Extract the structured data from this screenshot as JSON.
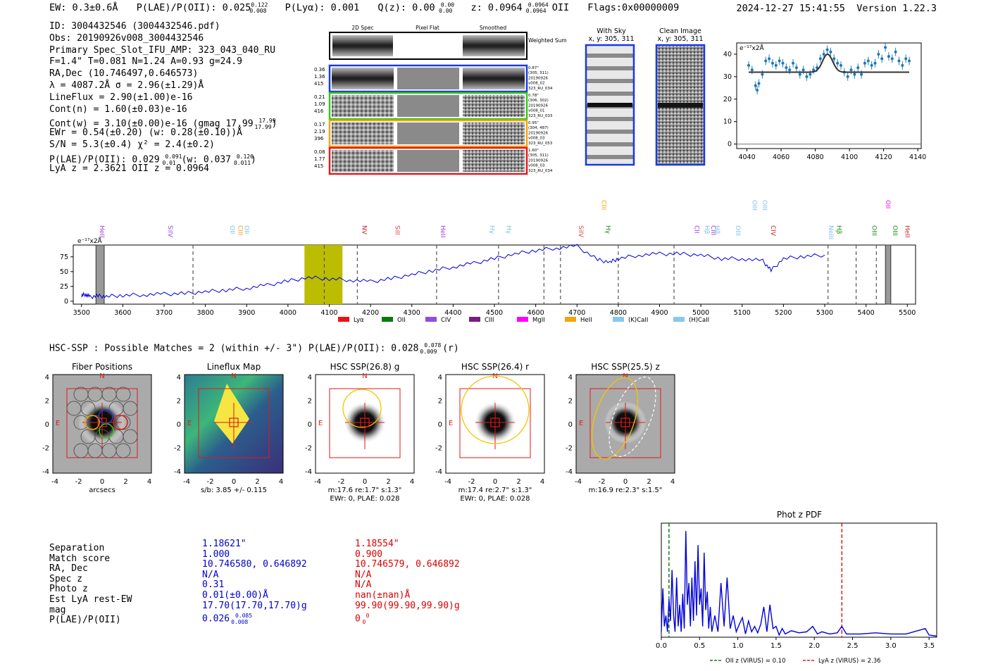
{
  "header": {
    "ew": "EW: 0.3±0.6Å",
    "plae": "P(LAE)/P(OII): 0.025",
    "plae_sup": "0.122",
    "plae_sub": "0.008",
    "plya": "P(Lyα): 0.001",
    "qz": "Q(z): 0.00",
    "qz_sup": "0.00",
    "qz_sub": "0.00",
    "z": "z: 0.0964",
    "z_sup": "0.0964",
    "z_sub": "0.0964",
    "z_line": "OII",
    "flags": "Flags:0x00000009",
    "timestamp": "2024-12-27 15:41:55",
    "version": "Version 1.22.3"
  },
  "info": {
    "id": "ID: 3004432546 (3004432546.pdf)",
    "obs": "Obs: 20190926v008_3004432546",
    "primary": "Primary Spec_Slot_IFU_AMP: 323_043_040_RU",
    "fwhm": "F=1.4\"  T=0.081  N=1.24  A=0.93  g=24.9",
    "radec": "RA,Dec (10.746497,0.646573)",
    "lambda": "λ = 4087.2Å  σ = 2.96(±1.29)Å",
    "lineflux": "LineFlux = 2.90(±1.00)e-16",
    "contn": "Cont(n) = 1.60(±0.03)e-16",
    "contw": "Cont(w) = 3.10(±0.00)e-16 (gmag 17.99",
    "contw_sup": "17.99",
    "contw_sub": "17.99",
    "ewr": "EWr = 0.54(±0.20) (w: 0.28(±0.10))Å",
    "sn": "S/N = 5.3(±0.4)  χ² = 2.4(±0.2)",
    "plae": "P(LAE)/P(OII): 0.029",
    "plae_sup": "0.091",
    "plae_sub": "0.01",
    "plae_w": "(w: 0.037",
    "plae_w_sup": "0.126",
    "plae_w_sub": "0.011",
    "lyaz": "LyA z = 2.3621  OII z = 0.0964"
  },
  "cutouts": {
    "col_labels": [
      "2D Spec",
      "Pixel Flat",
      "Smoothed"
    ],
    "weighted": "Weighted Sum",
    "rows": [
      {
        "left": [
          "0.36",
          "1.36",
          "415"
        ],
        "right": [
          "0.87\"",
          "(305, 311)",
          "20190926",
          "v008_02",
          "323_RU_034"
        ],
        "color": "#1a3adf"
      },
      {
        "left": [
          "0.21",
          "1.09",
          "416"
        ],
        "right": [
          "0.78\"",
          "(306, 302)",
          "20190926",
          "v008_01",
          "323_RU_033"
        ],
        "color": "#35c51b"
      },
      {
        "left": [
          "0.17",
          "2.19",
          "396"
        ],
        "right": [
          "0.95\"",
          "(304, 487)",
          "20190926",
          "v008_03",
          "323_RU_053"
        ],
        "color": "#f5a40a"
      },
      {
        "left": [
          "0.08",
          "1.77",
          "415"
        ],
        "right": [
          "1.60\"",
          "(305, 311)",
          "20190926",
          "v008_03",
          "323_RU_034"
        ],
        "color": "#e21a1a"
      }
    ],
    "with_sky": "With Sky",
    "with_sky_xy": "x, y: 305, 311",
    "clean": "Clean Image",
    "clean_xy": "x, y: 305, 311"
  },
  "line_fit": {
    "units": "e⁻¹⁷x2Å",
    "x_ticks": [
      "4040",
      "4060",
      "4080",
      "4100",
      "4120",
      "4140"
    ],
    "y_ticks": [
      "0",
      "10",
      "20",
      "30",
      "40"
    ],
    "xlim": [
      4034,
      4142
    ],
    "ylim": [
      -2,
      45
    ],
    "continuum": 32,
    "peak": 40,
    "center": 4087.2,
    "sigma": 2.96,
    "fit_x": [
      4041,
      4135
    ],
    "data_points": [
      [
        4041,
        35
      ],
      [
        4043,
        33
      ],
      [
        4045,
        26
      ],
      [
        4046,
        24
      ],
      [
        4047,
        27
      ],
      [
        4049,
        31
      ],
      [
        4051,
        37
      ],
      [
        4053,
        38
      ],
      [
        4055,
        36
      ],
      [
        4057,
        35
      ],
      [
        4059,
        37
      ],
      [
        4061,
        36
      ],
      [
        4063,
        34
      ],
      [
        4065,
        33
      ],
      [
        4067,
        36
      ],
      [
        4069,
        34
      ],
      [
        4071,
        31
      ],
      [
        4073,
        33
      ],
      [
        4075,
        30
      ],
      [
        4077,
        31
      ],
      [
        4079,
        33
      ],
      [
        4081,
        34
      ],
      [
        4083,
        38
      ],
      [
        4085,
        40
      ],
      [
        4087,
        42
      ],
      [
        4089,
        41
      ],
      [
        4091,
        38
      ],
      [
        4093,
        36
      ],
      [
        4095,
        35
      ],
      [
        4097,
        32
      ],
      [
        4099,
        30
      ],
      [
        4101,
        33
      ],
      [
        4103,
        31
      ],
      [
        4105,
        34
      ],
      [
        4107,
        31
      ],
      [
        4109,
        36
      ],
      [
        4111,
        37
      ],
      [
        4113,
        35
      ],
      [
        4115,
        36
      ],
      [
        4117,
        40
      ],
      [
        4119,
        38
      ],
      [
        4121,
        43
      ],
      [
        4123,
        39
      ],
      [
        4125,
        38
      ],
      [
        4127,
        41
      ],
      [
        4129,
        37
      ],
      [
        4131,
        35
      ],
      [
        4133,
        38
      ],
      [
        4135,
        37
      ]
    ]
  },
  "full_spectrum": {
    "units": "e⁻¹⁷x2Å",
    "x_ticks": [
      "3500",
      "3600",
      "3700",
      "3800",
      "3900",
      "4000",
      "4100",
      "4200",
      "4300",
      "4400",
      "4500",
      "4600",
      "4700",
      "4800",
      "4900",
      "5000",
      "5100",
      "5200",
      "5300",
      "5400",
      "5500"
    ],
    "y_ticks": [
      "0",
      "25",
      "50",
      "75"
    ],
    "xlim": [
      3480,
      5520
    ],
    "ylim": [
      -5,
      95
    ],
    "highlight": [
      4040,
      4132
    ],
    "dashed": [
      3770,
      4088,
      4168,
      4360,
      4510,
      4620,
      4660,
      4800,
      4935,
      5308,
      5376,
      5425
    ],
    "masks": [
      3535,
      3555,
      5447,
      5460
    ],
    "lines": [
      {
        "name": "HeII",
        "w": 3545,
        "color": "#a43ad6"
      },
      {
        "name": "SiIV",
        "w": 3710,
        "color": "#8f4ce6"
      },
      {
        "name": "OII",
        "w": 3860,
        "color": "#7cc0ea"
      },
      {
        "name": "CIII",
        "w": 3880,
        "color": "#f5a40a"
      },
      {
        "name": "OII",
        "w": 3895,
        "color": "#7cc0ea"
      },
      {
        "name": "NV",
        "w": 4180,
        "color": "#d02020"
      },
      {
        "name": "SiII",
        "w": 4260,
        "color": "#e04040"
      },
      {
        "name": "HeII",
        "w": 4370,
        "color": "#a43ad6"
      },
      {
        "name": "Hγ",
        "w": 4490,
        "color": "#7cc0ea"
      },
      {
        "name": "Hγ",
        "w": 4530,
        "color": "#7cc0ea"
      },
      {
        "name": "SiIV",
        "w": 4705,
        "color": "#e04040"
      },
      {
        "name": "CIII",
        "w": 4760,
        "color": "#f5a40a"
      },
      {
        "name": "Hγ",
        "w": 4770,
        "color": "#1a8a1a"
      },
      {
        "name": "CII",
        "w": 4985,
        "color": "#a43ad6"
      },
      {
        "name": "Hβ",
        "w": 5010,
        "color": "#7cc0ea"
      },
      {
        "name": "CIII",
        "w": 5025,
        "color": "#a43ad6"
      },
      {
        "name": "Hβ",
        "w": 5035,
        "color": "#7cc0ea"
      },
      {
        "name": "OIII",
        "w": 5085,
        "color": "#7cc0ea"
      },
      {
        "name": "OIII",
        "w": 5125,
        "color": "#7cc0ea"
      },
      {
        "name": "OIII",
        "w": 5150,
        "color": "#7cc0ea"
      },
      {
        "name": "CIV",
        "w": 5170,
        "color": "#d02020"
      },
      {
        "name": "NeIII",
        "w": 5310,
        "color": "#7cc0ea"
      },
      {
        "name": "Hβ",
        "w": 5330,
        "color": "#1a8a1a"
      },
      {
        "name": "OIII",
        "w": 5415,
        "color": "#1a8a1a"
      },
      {
        "name": "OII",
        "w": 5448,
        "color": "#ff00ff"
      },
      {
        "name": "OIII",
        "w": 5465,
        "color": "#1a8a1a"
      },
      {
        "name": "HeII",
        "w": 5495,
        "color": "#d02020"
      }
    ],
    "legend": [
      {
        "label": "Lyα",
        "color": "#e11"
      },
      {
        "label": "OII",
        "color": "#0a7a0a"
      },
      {
        "label": "CIV",
        "color": "#8f4ce6"
      },
      {
        "label": "CIII",
        "color": "#7a1b86"
      },
      {
        "label": "MgII",
        "color": "#ff00ff"
      },
      {
        "label": "HeII",
        "color": "#f5a40a"
      },
      {
        "label": "(K)CaII",
        "color": "#87c8f0"
      },
      {
        "label": "(H)CaII",
        "color": "#87c8f0"
      }
    ],
    "spectrum": [
      [
        3500,
        10
      ],
      [
        3510,
        12
      ],
      [
        3520,
        7
      ],
      [
        3540,
        9
      ],
      [
        3560,
        8
      ],
      [
        3600,
        10
      ],
      [
        3650,
        11
      ],
      [
        3700,
        12
      ],
      [
        3750,
        13
      ],
      [
        3800,
        16
      ],
      [
        3850,
        19
      ],
      [
        3900,
        22
      ],
      [
        3950,
        27
      ],
      [
        4000,
        34
      ],
      [
        4050,
        40
      ],
      [
        4100,
        38
      ],
      [
        4150,
        36
      ],
      [
        4200,
        33
      ],
      [
        4250,
        38
      ],
      [
        4300,
        45
      ],
      [
        4350,
        52
      ],
      [
        4400,
        58
      ],
      [
        4450,
        64
      ],
      [
        4500,
        72
      ],
      [
        4550,
        80
      ],
      [
        4600,
        86
      ],
      [
        4650,
        90
      ],
      [
        4700,
        93
      ],
      [
        4750,
        70
      ],
      [
        4780,
        66
      ],
      [
        4800,
        72
      ],
      [
        4850,
        78
      ],
      [
        4900,
        80
      ],
      [
        4950,
        80
      ],
      [
        5000,
        78
      ],
      [
        5050,
        72
      ],
      [
        5100,
        72
      ],
      [
        5150,
        68
      ],
      [
        5170,
        52
      ],
      [
        5200,
        72
      ],
      [
        5250,
        76
      ],
      [
        5300,
        78
      ]
    ]
  },
  "hsc_header": "HSC-SSP : Possible Matches = 2 (within +/- 3\")  P(LAE)/P(OII): 0.028",
  "hsc_sup": "0.078",
  "hsc_sub": "0.009",
  "hsc_tail": "(r)",
  "cutout_panels": [
    {
      "title": "Fiber Positions",
      "cap1": "arcsecs",
      "cap2": ""
    },
    {
      "title": "Lineflux Map",
      "cap1": "s/b: 3.85 +/- 0.115",
      "cap2": ""
    },
    {
      "title": "HSC SSP(26.8) g",
      "cap1": "m:17.6  re:1.7\"  s:1.3\"",
      "cap2": "EWr: 0, PLAE: 0.028"
    },
    {
      "title": "HSC SSP(26.4) r",
      "cap1": "m:17.4  re:2.7\"  s:1.3\"",
      "cap2": "EWr: 0, PLAE: 0.028"
    },
    {
      "title": "HSC SSP(25.5) z",
      "cap1": "m:16.9  re:2.3\"  s:1.5\"",
      "cap2": ""
    }
  ],
  "cutout_ticks": [
    "-4",
    "-2",
    "0",
    "2",
    "4"
  ],
  "compass": {
    "n": "N",
    "e": "E"
  },
  "match_table": {
    "labels": [
      "Separation",
      "Match score",
      "RA, Dec",
      "Spec z",
      "Photo z",
      "Est LyA rest-EW",
      "mag",
      "P(LAE)/P(OII)"
    ],
    "match1": [
      "1.18621\"",
      "1.000",
      "10.746580, 0.646892",
      "N/A",
      "0.31",
      "0.01(±0.00)Å",
      "17.70(17.70,17.70)g",
      "0.026"
    ],
    "match1_sup": "0.085",
    "match1_sub": "0.008",
    "match2": [
      "1.18554\"",
      "0.900",
      "10.746579, 0.646892",
      "N/A",
      "N/A",
      "nan(±nan)Å",
      "99.90(99.90,99.90)g",
      "0"
    ],
    "match2_sup": "0",
    "match2_sub": "0"
  },
  "photz": {
    "title": "Phot z PDF",
    "x_ticks": [
      "0.0",
      "0.5",
      "1.0",
      "1.5",
      "2.0",
      "2.5",
      "3.0",
      "3.5"
    ],
    "xlim": [
      0,
      3.6
    ],
    "oii_z": 0.1,
    "lya_z": 2.36,
    "legend_oii": "OII z (VIRUS) = 0.10",
    "legend_lya": "LyA z (VIRUS) = 2.36",
    "pdf": [
      [
        0.0,
        0.05
      ],
      [
        0.02,
        0.45
      ],
      [
        0.04,
        0.1
      ],
      [
        0.06,
        0.2
      ],
      [
        0.08,
        0.05
      ],
      [
        0.1,
        0.35
      ],
      [
        0.12,
        0.15
      ],
      [
        0.14,
        0.62
      ],
      [
        0.16,
        0.2
      ],
      [
        0.18,
        0.05
      ],
      [
        0.2,
        0.55
      ],
      [
        0.22,
        0.1
      ],
      [
        0.24,
        0.3
      ],
      [
        0.26,
        0.05
      ],
      [
        0.28,
        0.4
      ],
      [
        0.3,
        0.08
      ],
      [
        0.32,
        0.98
      ],
      [
        0.34,
        0.3
      ],
      [
        0.36,
        0.5
      ],
      [
        0.38,
        0.1
      ],
      [
        0.4,
        0.55
      ],
      [
        0.42,
        0.15
      ],
      [
        0.44,
        0.7
      ],
      [
        0.46,
        0.2
      ],
      [
        0.48,
        0.85
      ],
      [
        0.5,
        0.3
      ],
      [
        0.52,
        0.45
      ],
      [
        0.54,
        0.1
      ],
      [
        0.56,
        0.78
      ],
      [
        0.58,
        0.25
      ],
      [
        0.6,
        0.42
      ],
      [
        0.62,
        0.08
      ],
      [
        0.64,
        0.28
      ],
      [
        0.66,
        0.05
      ],
      [
        0.7,
        0.2
      ],
      [
        0.74,
        0.05
      ],
      [
        0.78,
        0.5
      ],
      [
        0.82,
        0.1
      ],
      [
        0.86,
        0.55
      ],
      [
        0.9,
        0.08
      ],
      [
        0.94,
        0.2
      ],
      [
        0.98,
        0.05
      ],
      [
        1.02,
        0.12
      ],
      [
        1.06,
        0.18
      ],
      [
        1.1,
        0.03
      ],
      [
        1.14,
        0.15
      ],
      [
        1.18,
        0.05
      ],
      [
        1.22,
        0.1
      ],
      [
        1.26,
        0.04
      ],
      [
        1.3,
        0.12
      ],
      [
        1.34,
        0.28
      ],
      [
        1.38,
        0.05
      ],
      [
        1.42,
        0.3
      ],
      [
        1.46,
        0.08
      ],
      [
        1.5,
        0.1
      ],
      [
        1.54,
        0.02
      ],
      [
        1.58,
        0.08
      ],
      [
        1.62,
        0.03
      ],
      [
        1.7,
        0.06
      ],
      [
        1.8,
        0.04
      ],
      [
        1.9,
        0.05
      ],
      [
        1.98,
        0.1
      ],
      [
        2.04,
        0.03
      ],
      [
        2.1,
        0.05
      ],
      [
        2.2,
        0.03
      ],
      [
        2.3,
        0.04
      ],
      [
        2.36,
        0.1
      ],
      [
        2.42,
        0.03
      ],
      [
        2.6,
        0.03
      ],
      [
        2.8,
        0.04
      ],
      [
        3.0,
        0.03
      ],
      [
        3.2,
        0.03
      ],
      [
        3.45,
        0.08
      ],
      [
        3.5,
        0.02
      ],
      [
        3.6,
        0.01
      ]
    ]
  }
}
